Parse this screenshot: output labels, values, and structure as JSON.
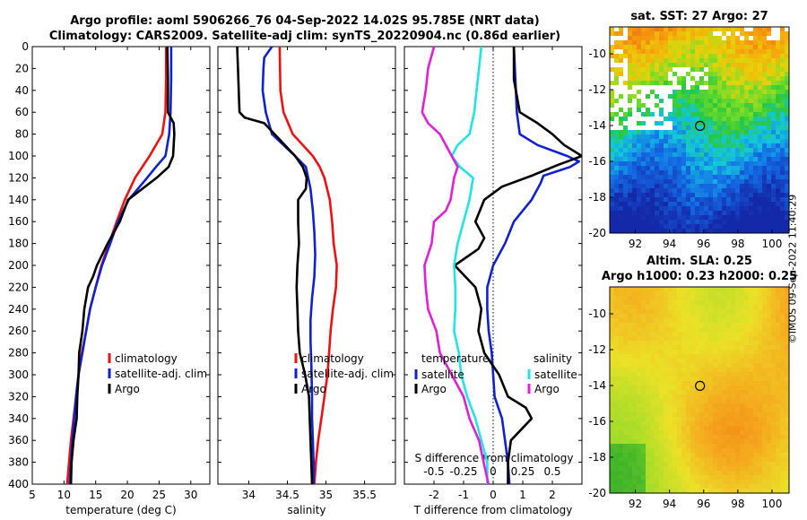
{
  "titles": {
    "line1": "Argo profile: aoml 5906266_76 04-Sep-2022 14.02S 95.785E (NRT data)",
    "line2": "Climatology: CARS2009. Satellite-adj clim: synTS_20220904.nc (0.86d earlier)",
    "sst_map": "sat. SST: 27 Argo: 27",
    "sla_map_line1": "Altim. SLA: 0.25",
    "sla_map_line2": "Argo h1000: 0.23 h2000: 0.25"
  },
  "timestamp": "©IMOS 09-Sep-2022 11:40:29",
  "colors": {
    "climatology": "#ee1111",
    "satellite": "#1122cc",
    "argo": "#000000",
    "temp_diff": "#e020d8",
    "sal_diff": "#22e4e4"
  },
  "chart_data": [
    {
      "type": "line",
      "id": "temperature",
      "xlabel": "temperature (deg C)",
      "ylabel": "",
      "xlim": [
        5,
        33
      ],
      "ylim": [
        400,
        0
      ],
      "xticks": [
        "5",
        "10",
        "15",
        "20",
        "25",
        "30"
      ],
      "yticks": [
        "0",
        "20",
        "40",
        "60",
        "80",
        "100",
        "120",
        "140",
        "160",
        "180",
        "200",
        "220",
        "240",
        "260",
        "280",
        "300",
        "320",
        "340",
        "360",
        "380",
        "400"
      ],
      "legend": [
        "climatology",
        "satellite-adj. clim",
        "Argo"
      ],
      "series": [
        {
          "name": "climatology",
          "depth": [
            0,
            30,
            60,
            80,
            100,
            120,
            140,
            160,
            180,
            200,
            220,
            240,
            260,
            280,
            300,
            320,
            340,
            360,
            380,
            400
          ],
          "values": [
            26.1,
            26.1,
            26,
            25.5,
            23.5,
            21.2,
            19.6,
            18.3,
            17.1,
            15.9,
            15,
            14.1,
            13.5,
            12.8,
            12.3,
            11.9,
            11.5,
            11.1,
            10.8,
            10.5
          ]
        },
        {
          "name": "satellite-adj. clim",
          "depth": [
            0,
            30,
            60,
            80,
            100,
            110,
            120,
            140,
            160,
            180,
            200,
            220,
            240,
            260,
            280,
            300,
            320,
            340,
            360,
            380,
            400
          ],
          "values": [
            26.9,
            26.9,
            26.8,
            26.6,
            26,
            24.5,
            23.1,
            20.2,
            18.5,
            17.3,
            16,
            15,
            14.1,
            13.5,
            12.9,
            12.3,
            11.9,
            11.6,
            11.3,
            11.1,
            10.9
          ]
        },
        {
          "name": "Argo",
          "depth": [
            0,
            30,
            60,
            70,
            80,
            90,
            100,
            110,
            120,
            140,
            160,
            180,
            200,
            210,
            220,
            240,
            260,
            280,
            300,
            320,
            340,
            360,
            380,
            400
          ],
          "values": [
            26.3,
            26.4,
            26.4,
            27.3,
            27.4,
            27.3,
            27.2,
            26.5,
            24.6,
            20.1,
            18.8,
            16.9,
            15.2,
            14.6,
            13.8,
            13.2,
            12.9,
            12.4,
            12.3,
            12.1,
            12,
            11.5,
            11.2,
            11.1
          ]
        }
      ]
    },
    {
      "type": "line",
      "id": "salinity",
      "xlabel": "salinity",
      "xlim": [
        33.6,
        35.9
      ],
      "ylim": [
        400,
        0
      ],
      "xticks": [
        "34",
        "34.5",
        "35",
        "35.5"
      ],
      "legend": [
        "climatology",
        "satellite-adj. clim",
        "Argo"
      ],
      "series": [
        {
          "name": "climatology",
          "depth": [
            0,
            40,
            60,
            80,
            90,
            100,
            110,
            120,
            140,
            160,
            180,
            200,
            220,
            240,
            260,
            280,
            300,
            320,
            340,
            360,
            380,
            400
          ],
          "values": [
            34.4,
            34.41,
            34.45,
            34.57,
            34.7,
            34.83,
            34.92,
            34.98,
            35.05,
            35.08,
            35.1,
            35.14,
            35.13,
            35.09,
            35.06,
            35.04,
            35.02,
            34.98,
            34.94,
            34.9,
            34.87,
            34.85
          ]
        },
        {
          "name": "satellite-adj. clim",
          "depth": [
            0,
            10,
            20,
            40,
            60,
            80,
            90,
            100,
            110,
            130,
            150,
            170,
            190,
            210,
            230,
            250,
            270,
            290,
            320,
            340,
            360,
            380,
            400
          ],
          "values": [
            34.3,
            34.2,
            34.19,
            34.18,
            34.22,
            34.3,
            34.45,
            34.6,
            34.74,
            34.8,
            34.83,
            34.85,
            34.86,
            34.85,
            34.82,
            34.8,
            34.8,
            34.81,
            34.82,
            34.82,
            34.83,
            34.84,
            34.84
          ]
        },
        {
          "name": "Argo",
          "depth": [
            0,
            20,
            60,
            65,
            70,
            85,
            100,
            110,
            120,
            130,
            140,
            160,
            180,
            200,
            220,
            240,
            260,
            280,
            300,
            320,
            340,
            360,
            380,
            400
          ],
          "values": [
            33.85,
            33.86,
            33.88,
            33.95,
            34.2,
            34.4,
            34.6,
            34.7,
            34.75,
            34.74,
            34.64,
            34.64,
            34.65,
            34.63,
            34.62,
            34.63,
            34.64,
            34.66,
            34.73,
            34.78,
            34.79,
            34.8,
            34.81,
            34.82
          ]
        }
      ]
    },
    {
      "type": "line",
      "id": "differences",
      "xlabel": "T difference from climatology",
      "xlabel_top": "S difference from climatology",
      "xlim": [
        -3,
        3
      ],
      "xlim_salinity": [
        -0.75,
        0.75
      ],
      "ylim": [
        400,
        0
      ],
      "xticks": [
        "-2",
        "-1",
        "0",
        "1",
        "2"
      ],
      "xticks_salinity": [
        "-0.5",
        "-0.25",
        "0",
        "0.25",
        "0.5"
      ],
      "legend_left_title": "temperature",
      "legend_right_title": "salinity",
      "legend_left": [
        "satellite",
        "Argo"
      ],
      "legend_right": [
        "satellite",
        "Argo"
      ],
      "series": [
        {
          "name": "temperature satellite",
          "depth": [
            0,
            30,
            60,
            80,
            90,
            100,
            105,
            110,
            118,
            125,
            140,
            160,
            180,
            200,
            220,
            240,
            260,
            280,
            300,
            320,
            340,
            360,
            380,
            400
          ],
          "values": [
            0.7,
            0.75,
            0.8,
            0.9,
            1.5,
            2.5,
            2.9,
            2.6,
            1.7,
            1.6,
            1.3,
            0.7,
            0.4,
            0,
            -0.2,
            -0.2,
            -0.15,
            -0.05,
            0,
            0.05,
            0.3,
            0.4,
            0.5,
            0.55
          ]
        },
        {
          "name": "temperature Argo",
          "depth": [
            0,
            30,
            60,
            70,
            80,
            90,
            100,
            108,
            118,
            128,
            140,
            160,
            175,
            185,
            200,
            220,
            240,
            260,
            280,
            300,
            320,
            330,
            340,
            360,
            380,
            400
          ],
          "values": [
            0.7,
            0.7,
            0.9,
            1.5,
            2,
            2.4,
            3,
            2.2,
            1.3,
            0.3,
            -0.3,
            -0.6,
            -0.3,
            -0.5,
            -1.3,
            -0.6,
            -0.4,
            -0.5,
            -0.3,
            0.2,
            0.5,
            1.1,
            1.3,
            0.6,
            0.5,
            0.5
          ]
        },
        {
          "name": "salinity satellite",
          "depth": [
            0,
            20,
            40,
            60,
            80,
            90,
            100,
            110,
            120,
            140,
            160,
            180,
            200,
            220,
            240,
            260,
            280,
            300,
            320,
            340,
            360,
            380,
            400
          ],
          "values": [
            -0.1,
            -0.12,
            -0.14,
            -0.16,
            -0.2,
            -0.3,
            -0.35,
            -0.28,
            -0.17,
            -0.2,
            -0.25,
            -0.3,
            -0.33,
            -0.32,
            -0.32,
            -0.33,
            -0.29,
            -0.27,
            -0.22,
            -0.15,
            -0.1,
            -0.05,
            -0.05
          ]
        },
        {
          "name": "salinity Argo",
          "depth": [
            0,
            20,
            40,
            60,
            70,
            80,
            90,
            100,
            110,
            120,
            140,
            150,
            160,
            180,
            190,
            200,
            220,
            240,
            260,
            280,
            300,
            320,
            340,
            360,
            380,
            400
          ],
          "values": [
            -0.5,
            -0.55,
            -0.57,
            -0.6,
            -0.55,
            -0.45,
            -0.4,
            -0.35,
            -0.3,
            -0.33,
            -0.36,
            -0.4,
            -0.5,
            -0.52,
            -0.55,
            -0.58,
            -0.57,
            -0.55,
            -0.48,
            -0.45,
            -0.35,
            -0.25,
            -0.2,
            -0.12,
            -0.08,
            -0.04
          ]
        }
      ]
    },
    {
      "type": "heatmap",
      "id": "sst_map",
      "title": "sat. SST: 27 Argo: 27",
      "xlim": [
        90.5,
        101
      ],
      "ylim": [
        -20,
        -8.5
      ],
      "xticks": [
        "92",
        "94",
        "96",
        "98",
        "100"
      ],
      "yticks": [
        "-10",
        "-12",
        "-14",
        "-16",
        "-18",
        "-20"
      ],
      "argo_position": {
        "lon": 95.785,
        "lat": -14.02
      }
    },
    {
      "type": "heatmap",
      "id": "sla_map",
      "title": "Altim. SLA: 0.25",
      "subtitle": "Argo h1000: 0.23 h2000: 0.25",
      "xlim": [
        90.5,
        101
      ],
      "ylim": [
        -20,
        -8.5
      ],
      "xticks": [
        "92",
        "94",
        "96",
        "98",
        "100"
      ],
      "yticks": [
        "-10",
        "-12",
        "-14",
        "-16",
        "-18",
        "-20"
      ],
      "argo_position": {
        "lon": 95.785,
        "lat": -14.02
      }
    }
  ]
}
